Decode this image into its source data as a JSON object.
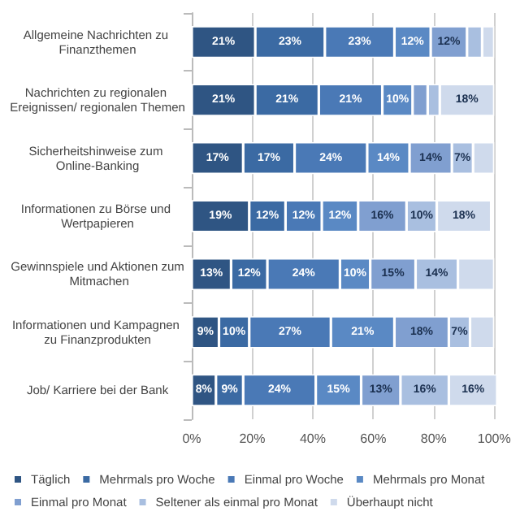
{
  "chart_data": {
    "type": "bar",
    "orientation": "horizontal",
    "stacked": true,
    "categories": [
      "Allgemeine Nachrichten zu Finanzthemen",
      "Nachrichten zu regionalen Ereignissen/ regionalen Themen",
      "Sicherheitshinweise zum Online-Banking",
      "Informationen zu Börse und Wertpapieren",
      "Gewinnspiele und Aktionen zum Mitmachen",
      "Informationen und Kampagnen zu Finanzprodukten",
      "Job/ Karriere bei der Bank"
    ],
    "series": [
      {
        "name": "Täglich",
        "color": "#2f5583",
        "values": [
          21,
          21,
          17,
          19,
          13,
          9,
          8
        ],
        "value_labels": [
          "21%",
          "21%",
          "17%",
          "19%",
          "13%",
          "9%",
          "8%"
        ]
      },
      {
        "name": "Mehrmals pro Woche",
        "color": "#3b6aa3",
        "values": [
          23,
          21,
          17,
          12,
          12,
          10,
          9
        ],
        "value_labels": [
          "23%",
          "21%",
          "17%",
          "12%",
          "12%",
          "10%",
          "9%"
        ]
      },
      {
        "name": "Einmal pro Woche",
        "color": "#4a79b6",
        "values": [
          23,
          21,
          24,
          12,
          24,
          27,
          24
        ],
        "value_labels": [
          "23%",
          "21%",
          "24%",
          "12%",
          "24%",
          "27%",
          "24%"
        ]
      },
      {
        "name": "Mehrmals pro Monat",
        "color": "#5a89c4",
        "values": [
          12,
          10,
          14,
          12,
          10,
          21,
          15
        ],
        "value_labels": [
          "12%",
          "10%",
          "14%",
          "12%",
          "10%",
          "21%",
          "15%"
        ]
      },
      {
        "name": "Einmal pro Monat",
        "color": "#809fd0",
        "values": [
          12,
          5,
          14,
          16,
          15,
          18,
          13
        ],
        "value_labels": [
          "12%",
          null,
          "14%",
          "16%",
          "15%",
          "18%",
          "13%"
        ]
      },
      {
        "name": "Seltener als einmal pro Monat",
        "color": "#a9bfe0",
        "values": [
          5,
          4,
          7,
          10,
          14,
          7,
          16
        ],
        "value_labels": [
          null,
          null,
          "7%",
          "10%",
          "14%",
          "7%",
          "16%"
        ]
      },
      {
        "name": "Überhaupt nicht",
        "color": "#cfdaec",
        "values": [
          4,
          18,
          7,
          18,
          12,
          8,
          16
        ],
        "value_labels": [
          null,
          "18%",
          null,
          "18%",
          null,
          null,
          "16%"
        ]
      }
    ],
    "xlim": [
      0,
      101
    ],
    "xticks": [
      {
        "value": 0,
        "label": "0%"
      },
      {
        "value": 20,
        "label": "20%"
      },
      {
        "value": 40,
        "label": "40%"
      },
      {
        "value": 60,
        "label": "60%"
      },
      {
        "value": 80,
        "label": "80%"
      },
      {
        "value": 100,
        "label": "100%"
      }
    ],
    "grid": "x",
    "legend": "bottom"
  }
}
